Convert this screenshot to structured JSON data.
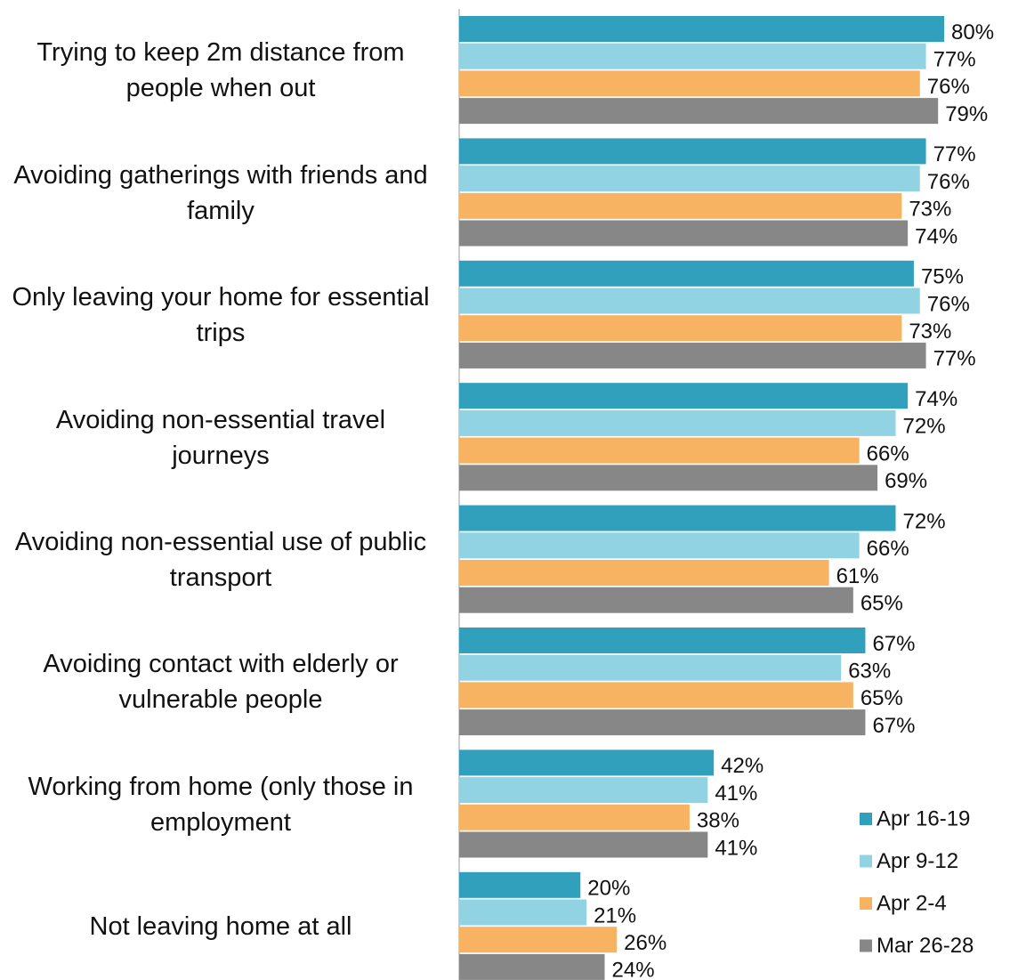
{
  "chart_data": {
    "type": "barh",
    "categories": [
      "Trying to keep 2m distance from people when out",
      "Avoiding gatherings with friends and family",
      "Only leaving your home for essential trips",
      "Avoiding non-essential travel journeys",
      "Avoiding non-essential use of public transport",
      "Avoiding contact with elderly or vulnerable people",
      "Working from home (only those in employment",
      "Not leaving home at all"
    ],
    "series": [
      {
        "name": "Apr 16-19",
        "color": "#31a0bc",
        "values": [
          80,
          77,
          75,
          74,
          72,
          67,
          42,
          20
        ],
        "value_labels": [
          "80%",
          "77%",
          "75%",
          "74%",
          "72%",
          "67%",
          "42%",
          "20%"
        ]
      },
      {
        "name": "Apr 9-12",
        "color": "#92d3e3",
        "values": [
          77,
          76,
          76,
          72,
          66,
          63,
          41,
          21
        ],
        "value_labels": [
          "77%",
          "76%",
          "76%",
          "72%",
          "66%",
          "63%",
          "41%",
          "21%"
        ]
      },
      {
        "name": "Apr 2-4",
        "color": "#f7b262",
        "values": [
          76,
          73,
          73,
          66,
          61,
          65,
          38,
          26
        ],
        "value_labels": [
          "76%",
          "73%",
          "73%",
          "66%",
          "61%",
          "65%",
          "38%",
          "26%"
        ]
      },
      {
        "name": "Mar 26-28",
        "color": "#878787",
        "values": [
          79,
          74,
          77,
          69,
          65,
          67,
          41,
          24
        ],
        "value_labels": [
          "79%",
          "74%",
          "77%",
          "69%",
          "65%",
          "67%",
          "41%",
          "24%"
        ]
      }
    ],
    "xlim": [
      0,
      80
    ],
    "legend": "lower right"
  }
}
